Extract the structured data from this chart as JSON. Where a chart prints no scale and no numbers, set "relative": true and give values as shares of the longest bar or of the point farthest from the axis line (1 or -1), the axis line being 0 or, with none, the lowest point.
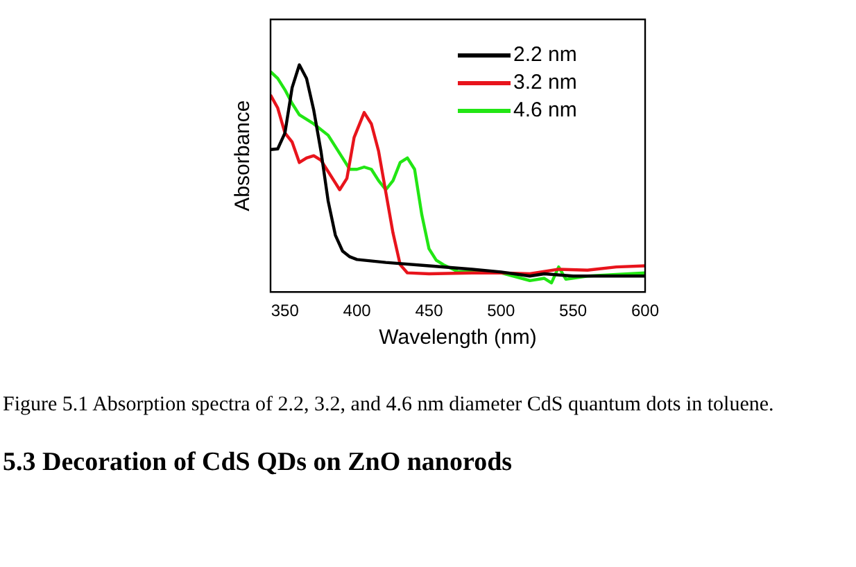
{
  "chart_data": {
    "type": "line",
    "xlabel": "Wavelength (nm)",
    "ylabel": "Absorbance",
    "relative": true,
    "xlim": [
      340,
      600
    ],
    "xticks": [
      350,
      400,
      450,
      500,
      550,
      600
    ],
    "legend": "top right",
    "grid": false,
    "marker": "none",
    "line_style": "solid",
    "series": [
      {
        "name": "2.2 nm",
        "color": "#000000",
        "x": [
          340,
          345,
          350,
          355,
          360,
          365,
          370,
          375,
          380,
          385,
          390,
          395,
          400,
          420,
          450,
          480,
          500,
          520,
          530,
          550,
          600
        ],
        "values": [
          0.627,
          0.63,
          0.7,
          0.9,
          1.0,
          0.94,
          0.8,
          0.62,
          0.4,
          0.25,
          0.18,
          0.155,
          0.143,
          0.13,
          0.115,
          0.1,
          0.088,
          0.07,
          0.08,
          0.07,
          0.07
        ]
      },
      {
        "name": "3.2 nm",
        "color": "#e8141c",
        "x": [
          340,
          345,
          350,
          355,
          360,
          365,
          370,
          375,
          380,
          385,
          388,
          393,
          398,
          405,
          410,
          415,
          420,
          425,
          430,
          435,
          450,
          480,
          500,
          520,
          540,
          560,
          580,
          600
        ],
        "values": [
          0.867,
          0.81,
          0.7,
          0.66,
          0.57,
          0.59,
          0.6,
          0.58,
          0.53,
          0.48,
          0.45,
          0.5,
          0.68,
          0.79,
          0.74,
          0.62,
          0.44,
          0.26,
          0.12,
          0.084,
          0.08,
          0.084,
          0.084,
          0.08,
          0.1,
          0.096,
          0.11,
          0.115
        ]
      },
      {
        "name": "4.6 nm",
        "color": "#22e614",
        "x": [
          340,
          345,
          350,
          355,
          360,
          370,
          380,
          390,
          395,
          400,
          405,
          410,
          415,
          420,
          425,
          430,
          435,
          440,
          445,
          450,
          455,
          460,
          470,
          500,
          520,
          530,
          535,
          540,
          545,
          560,
          600
        ],
        "values": [
          0.97,
          0.94,
          0.89,
          0.83,
          0.78,
          0.74,
          0.69,
          0.59,
          0.54,
          0.54,
          0.55,
          0.54,
          0.49,
          0.45,
          0.49,
          0.57,
          0.59,
          0.54,
          0.34,
          0.19,
          0.14,
          0.12,
          0.09,
          0.084,
          0.05,
          0.06,
          0.04,
          0.11,
          0.056,
          0.07,
          0.084
        ]
      }
    ],
    "annotations": [
      "Figure 5.1 Absorption spectra of 2.2, 3.2, and 4.6 nm diameter CdS quantum dots in toluene.",
      "5.3 Decoration of CdS QDs on ZnO nanorods"
    ]
  }
}
